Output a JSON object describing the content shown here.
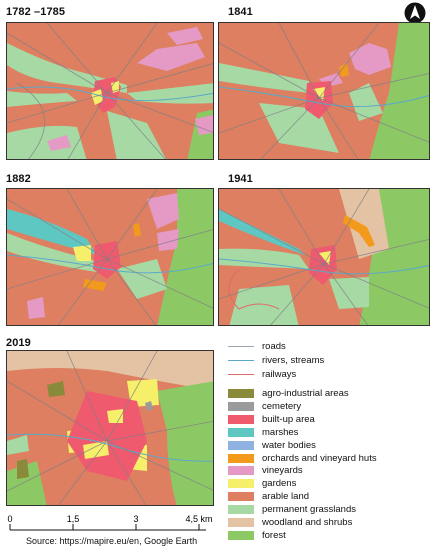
{
  "panels": [
    {
      "title": "1782 –1785"
    },
    {
      "title": "1841"
    },
    {
      "title": "1882"
    },
    {
      "title": "1941"
    },
    {
      "title": "2019"
    }
  ],
  "line_legend": [
    {
      "label": "roads",
      "color": "#9aa6b2"
    },
    {
      "label": "rivers, streams",
      "color": "#5aa9c9"
    },
    {
      "label": "railways",
      "color": "#e06a6a"
    }
  ],
  "landuse_legend": [
    {
      "label": "agro-industrial areas",
      "color": "#8a8b3a"
    },
    {
      "label": "cemetery",
      "color": "#9b9b9b"
    },
    {
      "label": "built-up area",
      "color": "#f05a6e"
    },
    {
      "label": "marshes",
      "color": "#5ec7c2"
    },
    {
      "label": "water bodies",
      "color": "#8fb2e0"
    },
    {
      "label": "orchards and vineyard huts",
      "color": "#f39a1c"
    },
    {
      "label": "vineyards",
      "color": "#e59ac6"
    },
    {
      "label": "gardens",
      "color": "#f5ef6a"
    },
    {
      "label": "arable land",
      "color": "#dd7f60"
    },
    {
      "label": "permanent grasslands",
      "color": "#a7d9a4"
    },
    {
      "label": "woodland and shrubs",
      "color": "#e3c3a4"
    },
    {
      "label": "forest",
      "color": "#8cc864"
    }
  ],
  "scale": {
    "ticks": [
      "0",
      "1,5",
      "3",
      "4,5 km"
    ]
  },
  "source": "Source: https://mapire.eu/en, Google Earth",
  "north_icon": "north-arrow-icon"
}
